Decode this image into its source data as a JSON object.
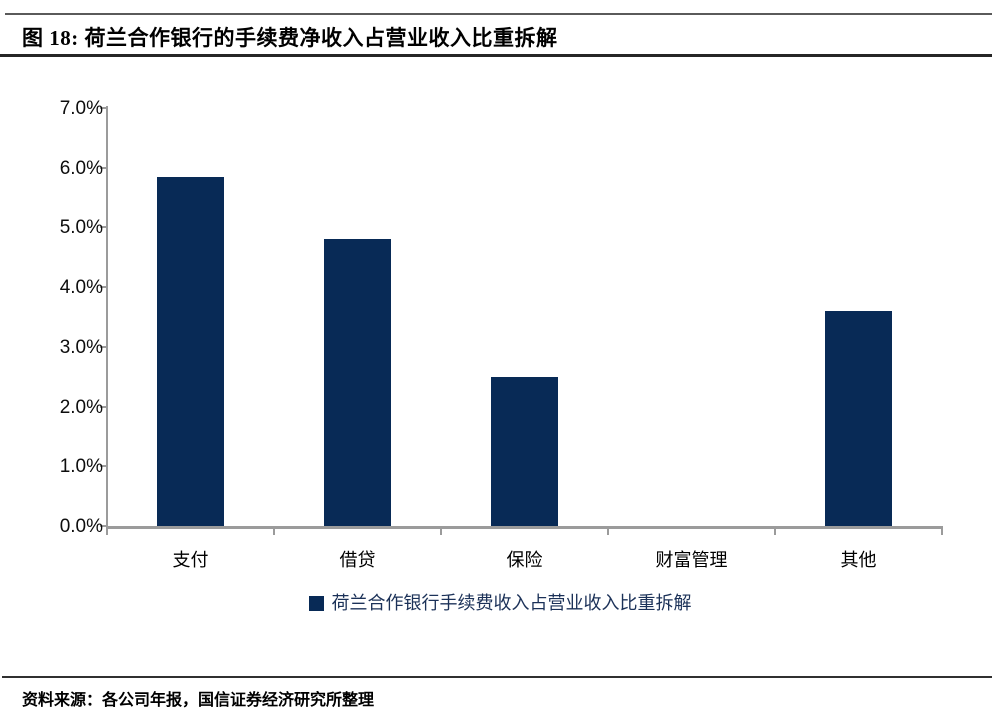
{
  "header": {
    "title": "图 18: 荷兰合作银行的手续费净收入占营业收入比重拆解"
  },
  "chart_data": {
    "type": "bar",
    "title": "荷兰合作银行的手续费净收入占营业收入比重拆解",
    "categories": [
      "支付",
      "借贷",
      "保险",
      "财富管理",
      "其他"
    ],
    "values": [
      5.85,
      4.8,
      2.5,
      0.0,
      3.6
    ],
    "unit": "%",
    "xlabel": "",
    "ylabel": "",
    "ylim": [
      0,
      7
    ],
    "ytick_step": 1,
    "ytick_labels": [
      "0.0%",
      "1.0%",
      "2.0%",
      "3.0%",
      "4.0%",
      "5.0%",
      "6.0%",
      "7.0%"
    ],
    "grid": false,
    "legend_position": "bottom",
    "legend_entries": [
      "荷兰合作银行手续费收入占营业收入比重拆解"
    ]
  },
  "legend": {
    "marker_icon": "filled-square-icon",
    "label": "荷兰合作银行手续费收入占营业收入比重拆解"
  },
  "footer": {
    "source": "资料来源：各公司年报，国信证券经济研究所整理"
  },
  "colors": {
    "bar": "#082a56",
    "axis": "#9b9b9b",
    "legend_text": "#1b3158",
    "title_text": "#000000"
  }
}
